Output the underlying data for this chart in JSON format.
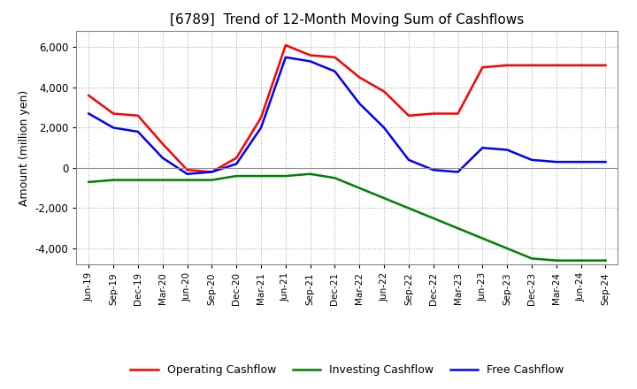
{
  "title": "[6789]  Trend of 12-Month Moving Sum of Cashflows",
  "ylabel": "Amount (million yen)",
  "ylim": [
    -4800,
    6800
  ],
  "yticks": [
    -4000,
    -2000,
    0,
    2000,
    4000,
    6000
  ],
  "x_labels": [
    "Jun-19",
    "Sep-19",
    "Dec-19",
    "Mar-20",
    "Jun-20",
    "Sep-20",
    "Dec-20",
    "Mar-21",
    "Jun-21",
    "Sep-21",
    "Dec-21",
    "Mar-22",
    "Jun-22",
    "Sep-22",
    "Dec-22",
    "Mar-23",
    "Jun-23",
    "Sep-23",
    "Dec-23",
    "Mar-24",
    "Jun-24",
    "Sep-24"
  ],
  "operating_cashflow": [
    3600,
    2700,
    2600,
    1200,
    -100,
    -200,
    500,
    2500,
    6100,
    5600,
    5500,
    4500,
    3800,
    2600,
    2700,
    2700,
    5000,
    5100,
    5100,
    5100,
    5100,
    5100
  ],
  "investing_cashflow": [
    -700,
    -600,
    -600,
    -600,
    -600,
    -600,
    -400,
    -400,
    -400,
    -300,
    -500,
    -1000,
    -1500,
    -2000,
    -2500,
    -3000,
    -3500,
    -4000,
    -4500,
    -4600,
    -4600,
    -4600
  ],
  "free_cashflow": [
    2700,
    2000,
    1800,
    500,
    -300,
    -200,
    200,
    2000,
    5500,
    5300,
    4800,
    3200,
    2000,
    400,
    -100,
    -200,
    1000,
    900,
    400,
    300,
    300,
    300
  ],
  "line_colors": {
    "operating": "#ff0000",
    "investing": "#008000",
    "free": "#0000ff"
  },
  "legend_labels": [
    "Operating Cashflow",
    "Investing Cashflow",
    "Free Cashflow"
  ],
  "background_color": "#ffffff",
  "plot_bg_color": "#ffffff"
}
